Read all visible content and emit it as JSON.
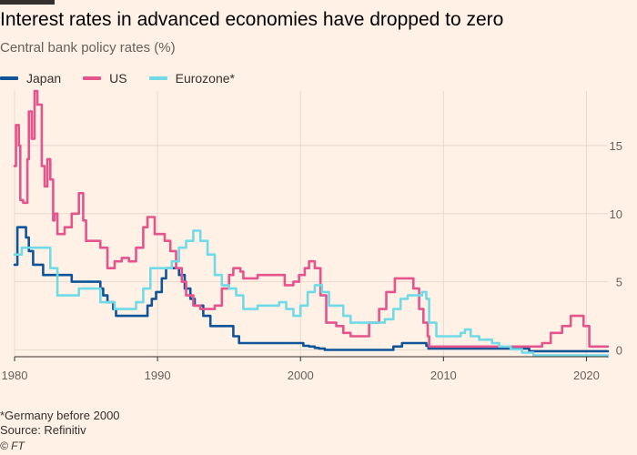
{
  "header": {
    "title": "Interest rates in advanced economies have dropped to zero",
    "subtitle": "Central bank policy rates (%)"
  },
  "footer": {
    "note": "*Germany before 2000",
    "source": "Source: Refinitiv",
    "credit": "© FT"
  },
  "colors": {
    "background": "#fff1e5",
    "grid": "#e6d9ce",
    "axis": "#33302e",
    "japan": "#0f5499",
    "us": "#e6548e",
    "eurozone": "#70dbe6"
  },
  "chart_data": {
    "type": "line",
    "title": "Interest rates in advanced economies have dropped to zero",
    "subtitle": "Central bank policy rates (%)",
    "xlabel": "",
    "ylabel": "",
    "xlim": [
      1980,
      2021.5
    ],
    "ylim": [
      -0.5,
      19
    ],
    "x_ticks": [
      1980,
      1990,
      2000,
      2010,
      2020
    ],
    "y_ticks": [
      0,
      5,
      10,
      15
    ],
    "grid": true,
    "y_axis_side": "right",
    "legend_position": "top-left",
    "series": [
      {
        "name": "Japan",
        "color": "#0f5499",
        "points": [
          [
            1980.0,
            6.25
          ],
          [
            1980.2,
            9.0
          ],
          [
            1980.7,
            9.0
          ],
          [
            1980.8,
            8.25
          ],
          [
            1981.0,
            7.25
          ],
          [
            1981.3,
            6.25
          ],
          [
            1982.0,
            5.5
          ],
          [
            1984.0,
            5.0
          ],
          [
            1986.0,
            4.5
          ],
          [
            1986.2,
            4.0
          ],
          [
            1986.5,
            3.5
          ],
          [
            1986.9,
            3.0
          ],
          [
            1987.1,
            2.5
          ],
          [
            1989.3,
            3.25
          ],
          [
            1989.6,
            3.75
          ],
          [
            1989.9,
            4.25
          ],
          [
            1990.3,
            5.25
          ],
          [
            1990.6,
            6.0
          ],
          [
            1991.5,
            5.5
          ],
          [
            1991.9,
            4.5
          ],
          [
            1992.3,
            3.75
          ],
          [
            1992.6,
            3.25
          ],
          [
            1993.2,
            2.5
          ],
          [
            1993.7,
            1.75
          ],
          [
            1995.3,
            1.0
          ],
          [
            1995.7,
            0.5
          ],
          [
            2000.0,
            0.5
          ],
          [
            2000.2,
            0.3
          ],
          [
            2000.6,
            0.25
          ],
          [
            2001.0,
            0.15
          ],
          [
            2001.3,
            0.1
          ],
          [
            2001.7,
            0.0
          ],
          [
            2006.5,
            0.25
          ],
          [
            2007.1,
            0.5
          ],
          [
            2008.8,
            0.3
          ],
          [
            2008.95,
            0.1
          ],
          [
            2016.0,
            -0.1
          ],
          [
            2021.5,
            -0.1
          ]
        ]
      },
      {
        "name": "US",
        "color": "#e6548e",
        "points": [
          [
            1980.0,
            13.5
          ],
          [
            1980.1,
            16.5
          ],
          [
            1980.3,
            15.0
          ],
          [
            1980.4,
            11.0
          ],
          [
            1980.6,
            10.8
          ],
          [
            1980.9,
            14.0
          ],
          [
            1981.0,
            17.5
          ],
          [
            1981.2,
            15.5
          ],
          [
            1981.4,
            19.0
          ],
          [
            1981.6,
            18.0
          ],
          [
            1981.9,
            13.5
          ],
          [
            1982.1,
            12.0
          ],
          [
            1982.3,
            14.0
          ],
          [
            1982.5,
            12.5
          ],
          [
            1982.7,
            9.5
          ],
          [
            1982.8,
            10.0
          ],
          [
            1983.0,
            8.5
          ],
          [
            1983.5,
            9.0
          ],
          [
            1984.0,
            10.0
          ],
          [
            1984.5,
            11.5
          ],
          [
            1984.8,
            9.5
          ],
          [
            1985.0,
            8.0
          ],
          [
            1985.5,
            8.0
          ],
          [
            1986.0,
            7.5
          ],
          [
            1986.5,
            6.0
          ],
          [
            1987.0,
            6.5
          ],
          [
            1987.5,
            6.75
          ],
          [
            1988.0,
            6.5
          ],
          [
            1988.5,
            7.5
          ],
          [
            1989.0,
            9.0
          ],
          [
            1989.3,
            9.75
          ],
          [
            1989.8,
            8.5
          ],
          [
            1990.5,
            8.0
          ],
          [
            1990.9,
            7.25
          ],
          [
            1991.3,
            6.0
          ],
          [
            1991.7,
            5.0
          ],
          [
            1992.0,
            4.0
          ],
          [
            1992.5,
            3.25
          ],
          [
            1993.0,
            3.0
          ],
          [
            1994.0,
            3.25
          ],
          [
            1994.5,
            4.5
          ],
          [
            1995.0,
            5.5
          ],
          [
            1995.3,
            6.0
          ],
          [
            1995.8,
            5.75
          ],
          [
            1996.0,
            5.25
          ],
          [
            1997.0,
            5.5
          ],
          [
            1998.5,
            5.5
          ],
          [
            1998.9,
            4.75
          ],
          [
            1999.5,
            5.0
          ],
          [
            1999.9,
            5.5
          ],
          [
            2000.3,
            6.0
          ],
          [
            2000.6,
            6.5
          ],
          [
            2001.0,
            6.0
          ],
          [
            2001.4,
            4.0
          ],
          [
            2001.8,
            2.0
          ],
          [
            2002.5,
            1.75
          ],
          [
            2003.0,
            1.25
          ],
          [
            2003.5,
            1.0
          ],
          [
            2004.4,
            1.0
          ],
          [
            2004.8,
            2.0
          ],
          [
            2005.5,
            3.0
          ],
          [
            2006.0,
            4.25
          ],
          [
            2006.6,
            5.25
          ],
          [
            2007.6,
            5.25
          ],
          [
            2007.9,
            4.5
          ],
          [
            2008.3,
            3.0
          ],
          [
            2008.6,
            2.0
          ],
          [
            2008.9,
            1.0
          ],
          [
            2009.0,
            0.25
          ],
          [
            2015.9,
            0.25
          ],
          [
            2016.9,
            0.5
          ],
          [
            2017.5,
            1.25
          ],
          [
            2018.3,
            1.75
          ],
          [
            2018.9,
            2.5
          ],
          [
            2019.4,
            2.5
          ],
          [
            2019.8,
            1.75
          ],
          [
            2020.2,
            0.25
          ],
          [
            2021.5,
            0.25
          ]
        ]
      },
      {
        "name": "Eurozone*",
        "color": "#70dbe6",
        "points": [
          [
            1980.0,
            7.0
          ],
          [
            1980.5,
            7.5
          ],
          [
            1982.0,
            7.5
          ],
          [
            1982.5,
            6.0
          ],
          [
            1983.0,
            4.0
          ],
          [
            1984.5,
            4.5
          ],
          [
            1985.5,
            4.5
          ],
          [
            1986.0,
            3.5
          ],
          [
            1987.0,
            3.0
          ],
          [
            1988.0,
            3.0
          ],
          [
            1988.5,
            3.5
          ],
          [
            1989.0,
            4.5
          ],
          [
            1989.5,
            6.0
          ],
          [
            1990.0,
            6.0
          ],
          [
            1991.0,
            6.5
          ],
          [
            1991.5,
            7.5
          ],
          [
            1992.0,
            8.0
          ],
          [
            1992.5,
            8.75
          ],
          [
            1993.0,
            8.0
          ],
          [
            1993.5,
            7.0
          ],
          [
            1994.0,
            5.5
          ],
          [
            1994.5,
            4.75
          ],
          [
            1995.0,
            4.5
          ],
          [
            1995.5,
            4.0
          ],
          [
            1996.0,
            3.0
          ],
          [
            1997.0,
            3.25
          ],
          [
            1998.5,
            3.5
          ],
          [
            1999.0,
            3.0
          ],
          [
            1999.5,
            2.5
          ],
          [
            2000.0,
            3.25
          ],
          [
            2000.5,
            4.25
          ],
          [
            2001.0,
            4.75
          ],
          [
            2001.5,
            4.25
          ],
          [
            2002.0,
            3.25
          ],
          [
            2003.0,
            2.5
          ],
          [
            2003.5,
            2.0
          ],
          [
            2005.9,
            2.25
          ],
          [
            2006.5,
            3.0
          ],
          [
            2007.0,
            3.75
          ],
          [
            2007.5,
            4.0
          ],
          [
            2008.5,
            4.25
          ],
          [
            2008.8,
            3.75
          ],
          [
            2009.0,
            2.0
          ],
          [
            2009.5,
            1.0
          ],
          [
            2011.2,
            1.25
          ],
          [
            2011.5,
            1.5
          ],
          [
            2011.9,
            1.0
          ],
          [
            2012.5,
            0.75
          ],
          [
            2013.4,
            0.5
          ],
          [
            2013.9,
            0.25
          ],
          [
            2014.7,
            0.05
          ],
          [
            2015.5,
            -0.2
          ],
          [
            2016.3,
            -0.4
          ],
          [
            2021.5,
            -0.5
          ]
        ]
      }
    ]
  }
}
